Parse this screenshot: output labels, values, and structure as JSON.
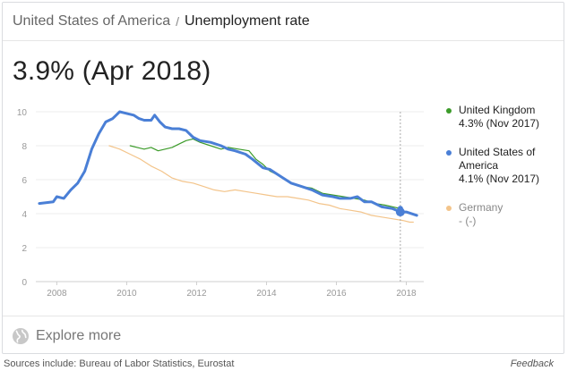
{
  "header": {
    "country": "United States of America",
    "separator": "/",
    "metric": "Unemployment rate"
  },
  "headline": "3.9% (Apr 2018)",
  "legend": [
    {
      "name": "United Kingdom",
      "value": "4.3% (Nov 2017)",
      "color": "#3c9b2a"
    },
    {
      "name": "United States of America",
      "value": "4.1% (Nov 2017)",
      "color": "#4a7fd6"
    },
    {
      "name": "Germany",
      "value": "- (-)",
      "color": "#f3c48a"
    }
  ],
  "explore_label": "Explore more",
  "footer": {
    "sources": "Sources include: Bureau of Labor Statistics, Eurostat",
    "feedback": "Feedback"
  },
  "chart_data": {
    "type": "line",
    "title": "Unemployment rate",
    "xlabel": "",
    "ylabel": "",
    "xlim": [
      2007.4,
      2018.5
    ],
    "ylim": [
      0,
      10
    ],
    "x_ticks": [
      "2008",
      "2010",
      "2012",
      "2014",
      "2016",
      "2018"
    ],
    "y_ticks": [
      "0",
      "2",
      "4",
      "6",
      "8",
      "10"
    ],
    "grid": true,
    "legend_position": "right",
    "marker_x": 2017.83,
    "series": [
      {
        "name": "United States of America",
        "color": "#4a7fd6",
        "points": [
          [
            2007.5,
            4.6
          ],
          [
            2007.9,
            4.7
          ],
          [
            2008.0,
            5.0
          ],
          [
            2008.2,
            4.9
          ],
          [
            2008.4,
            5.4
          ],
          [
            2008.6,
            5.8
          ],
          [
            2008.8,
            6.5
          ],
          [
            2009.0,
            7.8
          ],
          [
            2009.2,
            8.7
          ],
          [
            2009.4,
            9.4
          ],
          [
            2009.6,
            9.6
          ],
          [
            2009.8,
            10.0
          ],
          [
            2010.0,
            9.9
          ],
          [
            2010.2,
            9.8
          ],
          [
            2010.35,
            9.6
          ],
          [
            2010.5,
            9.5
          ],
          [
            2010.7,
            9.5
          ],
          [
            2010.8,
            9.8
          ],
          [
            2010.95,
            9.4
          ],
          [
            2011.1,
            9.1
          ],
          [
            2011.3,
            9.0
          ],
          [
            2011.5,
            9.0
          ],
          [
            2011.7,
            8.9
          ],
          [
            2011.9,
            8.5
          ],
          [
            2012.1,
            8.3
          ],
          [
            2012.4,
            8.2
          ],
          [
            2012.7,
            8.0
          ],
          [
            2012.9,
            7.8
          ],
          [
            2013.1,
            7.7
          ],
          [
            2013.4,
            7.5
          ],
          [
            2013.6,
            7.2
          ],
          [
            2013.9,
            6.7
          ],
          [
            2014.1,
            6.6
          ],
          [
            2014.4,
            6.2
          ],
          [
            2014.7,
            5.8
          ],
          [
            2015.0,
            5.6
          ],
          [
            2015.3,
            5.4
          ],
          [
            2015.6,
            5.1
          ],
          [
            2015.9,
            5.0
          ],
          [
            2016.1,
            4.9
          ],
          [
            2016.4,
            4.9
          ],
          [
            2016.6,
            5.0
          ],
          [
            2016.8,
            4.7
          ],
          [
            2017.0,
            4.7
          ],
          [
            2017.3,
            4.4
          ],
          [
            2017.6,
            4.3
          ],
          [
            2017.83,
            4.1
          ],
          [
            2018.0,
            4.1
          ],
          [
            2018.3,
            3.9
          ]
        ]
      },
      {
        "name": "United Kingdom",
        "color": "#3c9b2a",
        "points": [
          [
            2010.1,
            8.0
          ],
          [
            2010.3,
            7.9
          ],
          [
            2010.5,
            7.8
          ],
          [
            2010.7,
            7.9
          ],
          [
            2010.9,
            7.7
          ],
          [
            2011.1,
            7.8
          ],
          [
            2011.3,
            7.9
          ],
          [
            2011.5,
            8.1
          ],
          [
            2011.7,
            8.3
          ],
          [
            2011.9,
            8.4
          ],
          [
            2012.1,
            8.2
          ],
          [
            2012.4,
            8.0
          ],
          [
            2012.7,
            7.8
          ],
          [
            2012.9,
            7.9
          ],
          [
            2013.2,
            7.8
          ],
          [
            2013.5,
            7.7
          ],
          [
            2013.7,
            7.2
          ],
          [
            2013.9,
            6.9
          ],
          [
            2014.1,
            6.5
          ],
          [
            2014.4,
            6.2
          ],
          [
            2014.7,
            5.8
          ],
          [
            2015.0,
            5.6
          ],
          [
            2015.3,
            5.5
          ],
          [
            2015.6,
            5.2
          ],
          [
            2015.9,
            5.1
          ],
          [
            2016.2,
            5.0
          ],
          [
            2016.5,
            4.9
          ],
          [
            2016.8,
            4.8
          ],
          [
            2017.1,
            4.6
          ],
          [
            2017.4,
            4.5
          ],
          [
            2017.83,
            4.3
          ]
        ]
      },
      {
        "name": "Germany",
        "color": "#f3c48a",
        "points": [
          [
            2009.5,
            8.0
          ],
          [
            2009.8,
            7.8
          ],
          [
            2010.1,
            7.5
          ],
          [
            2010.4,
            7.2
          ],
          [
            2010.7,
            6.8
          ],
          [
            2011.0,
            6.5
          ],
          [
            2011.3,
            6.1
          ],
          [
            2011.6,
            5.9
          ],
          [
            2011.9,
            5.8
          ],
          [
            2012.2,
            5.6
          ],
          [
            2012.5,
            5.4
          ],
          [
            2012.8,
            5.3
          ],
          [
            2013.1,
            5.4
          ],
          [
            2013.4,
            5.3
          ],
          [
            2013.7,
            5.2
          ],
          [
            2014.0,
            5.1
          ],
          [
            2014.3,
            5.0
          ],
          [
            2014.6,
            5.0
          ],
          [
            2014.9,
            4.9
          ],
          [
            2015.2,
            4.8
          ],
          [
            2015.5,
            4.6
          ],
          [
            2015.8,
            4.5
          ],
          [
            2016.1,
            4.3
          ],
          [
            2016.4,
            4.2
          ],
          [
            2016.7,
            4.1
          ],
          [
            2017.0,
            3.9
          ],
          [
            2017.3,
            3.8
          ],
          [
            2017.6,
            3.7
          ],
          [
            2017.9,
            3.6
          ],
          [
            2018.1,
            3.5
          ],
          [
            2018.2,
            3.5
          ]
        ]
      }
    ]
  }
}
